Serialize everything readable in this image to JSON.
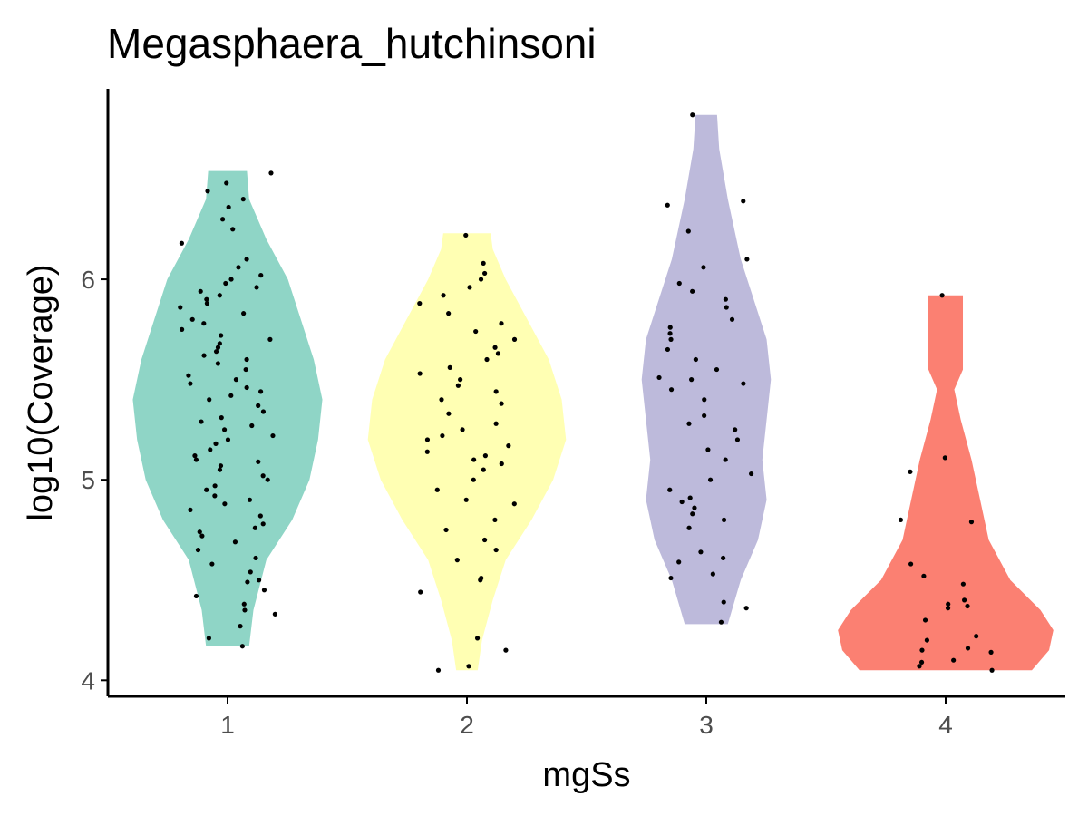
{
  "chart_data": {
    "type": "violin",
    "title": "Megasphaera_hutchinsoni",
    "xlabel": "mgSs",
    "ylabel": "log10(Coverage)",
    "categories": [
      "1",
      "2",
      "3",
      "4"
    ],
    "y_ticks": [
      4,
      5,
      6
    ],
    "ylim": [
      3.92,
      6.95
    ],
    "grid": false,
    "legend": "none",
    "colors": [
      "#8fd5c6",
      "#ffffb3",
      "#bdbadb",
      "#fb8072"
    ],
    "series": [
      {
        "category": "1",
        "range": [
          4.17,
          6.54
        ],
        "density": [
          [
            4.17,
            0.05
          ],
          [
            4.35,
            0.06
          ],
          [
            4.6,
            0.09
          ],
          [
            4.8,
            0.15
          ],
          [
            5.0,
            0.19
          ],
          [
            5.2,
            0.21
          ],
          [
            5.4,
            0.22
          ],
          [
            5.6,
            0.2
          ],
          [
            5.8,
            0.17
          ],
          [
            6.0,
            0.14
          ],
          [
            6.2,
            0.09
          ],
          [
            6.4,
            0.05
          ],
          [
            6.54,
            0.045
          ]
        ],
        "points": [
          4.17,
          4.21,
          4.27,
          4.33,
          4.35,
          4.38,
          4.42,
          4.45,
          4.49,
          4.5,
          4.54,
          4.58,
          4.61,
          4.65,
          4.69,
          4.72,
          4.74,
          4.76,
          4.78,
          4.82,
          4.85,
          4.88,
          4.9,
          4.92,
          4.95,
          4.97,
          5.0,
          5.02,
          5.05,
          5.07,
          5.09,
          5.1,
          5.12,
          5.15,
          5.18,
          5.2,
          5.22,
          5.25,
          5.27,
          5.29,
          5.31,
          5.34,
          5.37,
          5.4,
          5.42,
          5.44,
          5.46,
          5.48,
          5.5,
          5.52,
          5.55,
          5.58,
          5.6,
          5.62,
          5.64,
          5.66,
          5.68,
          5.7,
          5.72,
          5.75,
          5.78,
          5.8,
          5.83,
          5.86,
          5.88,
          5.9,
          5.92,
          5.94,
          5.96,
          5.98,
          6.0,
          6.02,
          6.06,
          6.1,
          6.18,
          6.25,
          6.3,
          6.36,
          6.4,
          6.44,
          6.48,
          6.53
        ]
      },
      {
        "category": "2",
        "range": [
          4.05,
          6.23
        ],
        "density": [
          [
            4.05,
            0.025
          ],
          [
            4.2,
            0.035
          ],
          [
            4.4,
            0.06
          ],
          [
            4.6,
            0.09
          ],
          [
            4.8,
            0.15
          ],
          [
            5.0,
            0.2
          ],
          [
            5.2,
            0.23
          ],
          [
            5.4,
            0.22
          ],
          [
            5.6,
            0.19
          ],
          [
            5.8,
            0.14
          ],
          [
            6.0,
            0.09
          ],
          [
            6.15,
            0.06
          ],
          [
            6.23,
            0.055
          ]
        ],
        "points": [
          4.05,
          4.07,
          4.15,
          4.21,
          4.44,
          4.5,
          4.51,
          4.6,
          4.65,
          4.7,
          4.75,
          4.8,
          4.88,
          4.9,
          4.95,
          5.0,
          5.05,
          5.08,
          5.1,
          5.12,
          5.14,
          5.17,
          5.2,
          5.22,
          5.25,
          5.28,
          5.33,
          5.38,
          5.4,
          5.44,
          5.47,
          5.5,
          5.53,
          5.56,
          5.6,
          5.63,
          5.66,
          5.7,
          5.74,
          5.78,
          5.83,
          5.88,
          5.92,
          5.96,
          6.0,
          6.03,
          6.08,
          6.22
        ]
      },
      {
        "category": "3",
        "range": [
          4.28,
          6.82
        ],
        "density": [
          [
            4.28,
            0.05
          ],
          [
            4.5,
            0.08
          ],
          [
            4.7,
            0.12
          ],
          [
            4.9,
            0.14
          ],
          [
            5.1,
            0.13
          ],
          [
            5.3,
            0.14
          ],
          [
            5.5,
            0.15
          ],
          [
            5.7,
            0.14
          ],
          [
            5.9,
            0.11
          ],
          [
            6.1,
            0.08
          ],
          [
            6.4,
            0.05
          ],
          [
            6.65,
            0.03
          ],
          [
            6.82,
            0.025
          ]
        ],
        "points": [
          4.29,
          4.36,
          4.39,
          4.51,
          4.53,
          4.59,
          4.61,
          4.64,
          4.76,
          4.8,
          4.83,
          4.86,
          4.89,
          4.91,
          4.95,
          5.0,
          5.03,
          5.1,
          5.15,
          5.2,
          5.25,
          5.28,
          5.32,
          5.4,
          5.45,
          5.48,
          5.5,
          5.51,
          5.55,
          5.6,
          5.65,
          5.7,
          5.73,
          5.76,
          5.8,
          5.86,
          5.9,
          5.94,
          5.98,
          6.06,
          6.1,
          6.24,
          6.37,
          6.39,
          6.82
        ]
      },
      {
        "category": "4",
        "range": [
          4.05,
          5.92
        ],
        "density": [
          [
            4.05,
            0.2
          ],
          [
            4.15,
            0.24
          ],
          [
            4.25,
            0.25
          ],
          [
            4.35,
            0.22
          ],
          [
            4.5,
            0.15
          ],
          [
            4.7,
            0.1
          ],
          [
            4.9,
            0.08
          ],
          [
            5.1,
            0.06
          ],
          [
            5.3,
            0.035
          ],
          [
            5.45,
            0.02
          ],
          [
            5.55,
            0.04
          ],
          [
            5.7,
            0.04
          ],
          [
            5.85,
            0.04
          ],
          [
            5.92,
            0.04
          ]
        ],
        "points": [
          4.05,
          4.07,
          4.09,
          4.1,
          4.14,
          4.15,
          4.16,
          4.2,
          4.22,
          4.3,
          4.36,
          4.37,
          4.38,
          4.4,
          4.48,
          4.52,
          4.58,
          4.79,
          4.8,
          5.04,
          5.11,
          5.92
        ]
      }
    ]
  }
}
